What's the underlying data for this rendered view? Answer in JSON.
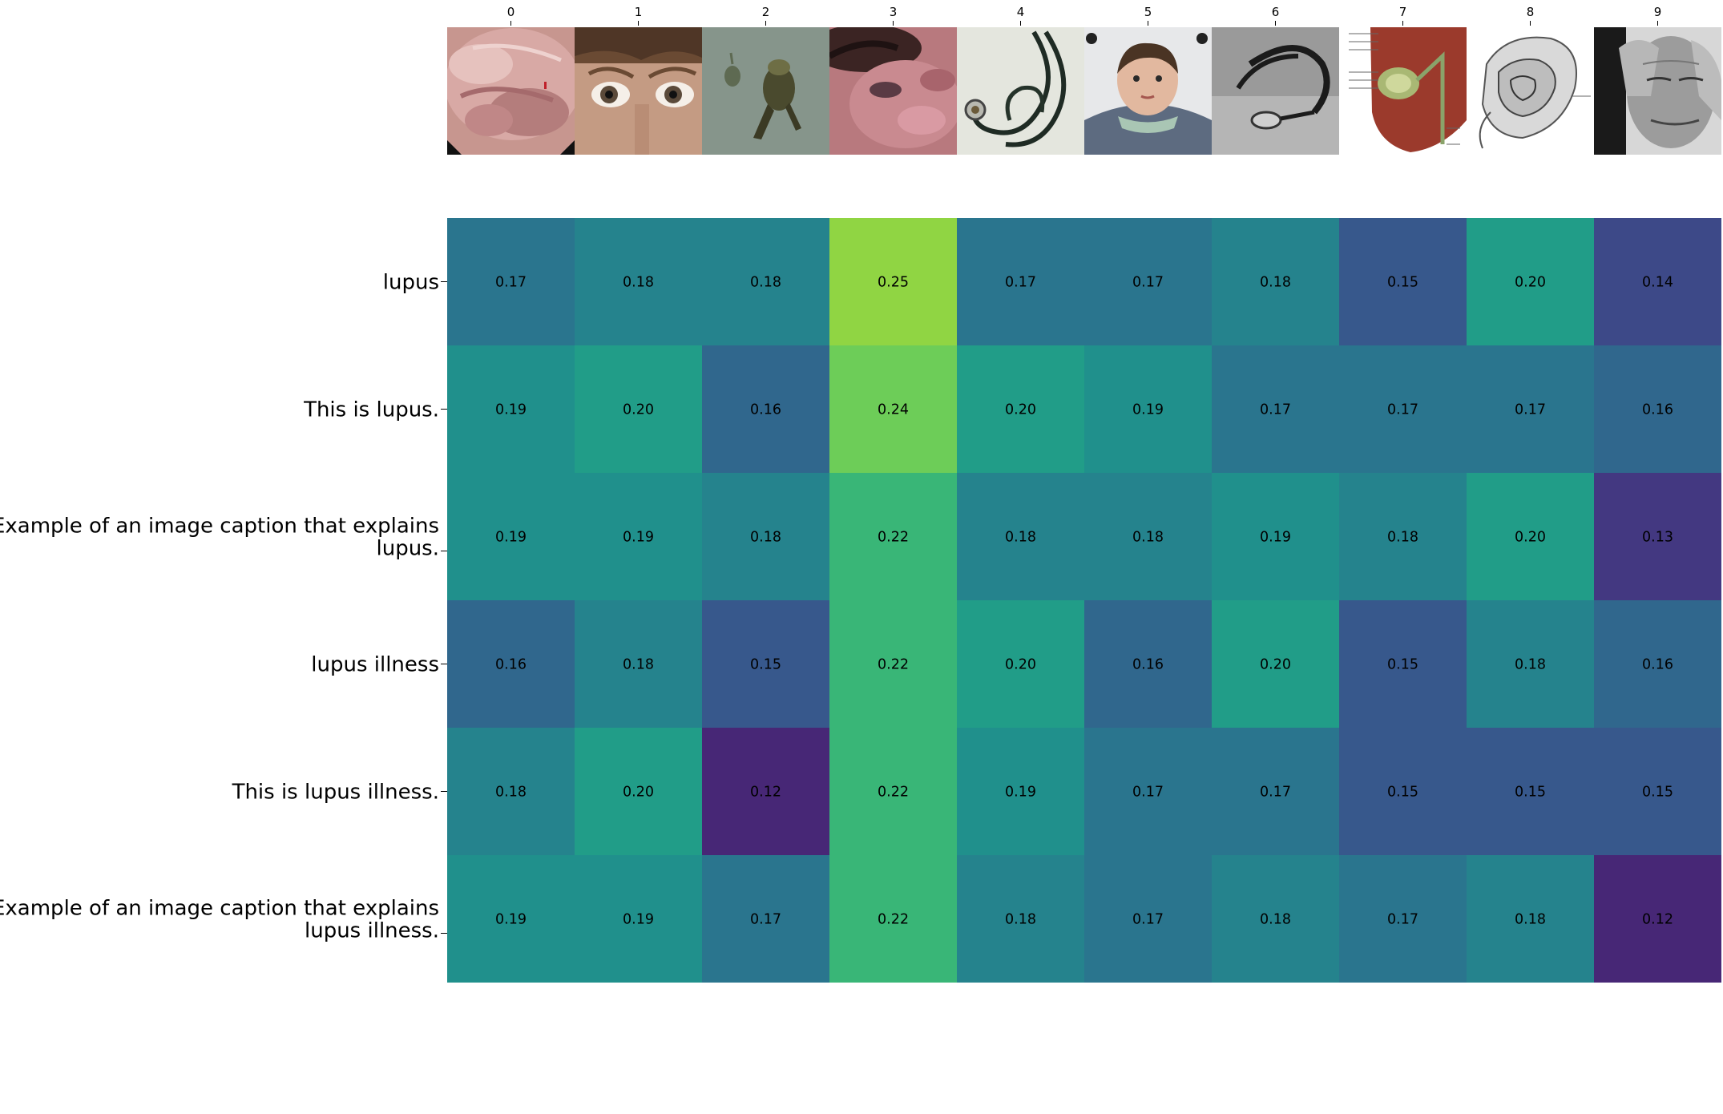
{
  "chart_data": {
    "type": "heatmap",
    "title": "",
    "xlabel": "",
    "ylabel": "",
    "columns": [
      "0",
      "1",
      "2",
      "3",
      "4",
      "5",
      "6",
      "7",
      "8",
      "9"
    ],
    "column_thumbnails": [
      "endoscopy-tissue-photo",
      "child-eyes-photo",
      "parasite-microscope-photo",
      "facial-skin-lesion-photo",
      "stethoscope-photo",
      "child-portrait-photo",
      "stethoscope-grey-photo",
      "liver-gallbladder-diagram",
      "brain-section-drawing",
      "elderly-man-face-photo"
    ],
    "rows": [
      [
        "lupus"
      ],
      [
        "This is lupus."
      ],
      [
        "Example of an image caption that explains",
        "lupus."
      ],
      [
        "lupus illness"
      ],
      [
        "This is lupus illness."
      ],
      [
        "Example of an image caption that explains",
        "lupus illness."
      ]
    ],
    "values": [
      [
        "0.17",
        "0.18",
        "0.18",
        "0.25",
        "0.17",
        "0.17",
        "0.18",
        "0.15",
        "0.20",
        "0.14"
      ],
      [
        "0.19",
        "0.20",
        "0.16",
        "0.24",
        "0.20",
        "0.19",
        "0.17",
        "0.17",
        "0.17",
        "0.16"
      ],
      [
        "0.19",
        "0.19",
        "0.18",
        "0.22",
        "0.18",
        "0.18",
        "0.19",
        "0.18",
        "0.20",
        "0.13"
      ],
      [
        "0.16",
        "0.18",
        "0.15",
        "0.22",
        "0.20",
        "0.16",
        "0.20",
        "0.15",
        "0.18",
        "0.16"
      ],
      [
        "0.18",
        "0.20",
        "0.12",
        "0.22",
        "0.19",
        "0.17",
        "0.17",
        "0.15",
        "0.15",
        "0.15"
      ],
      [
        "0.19",
        "0.19",
        "0.17",
        "0.22",
        "0.18",
        "0.17",
        "0.18",
        "0.17",
        "0.18",
        "0.12"
      ]
    ],
    "colormap": "viridis",
    "value_range": [
      0.1,
      0.28
    ],
    "colorbar": false,
    "grid": false
  }
}
